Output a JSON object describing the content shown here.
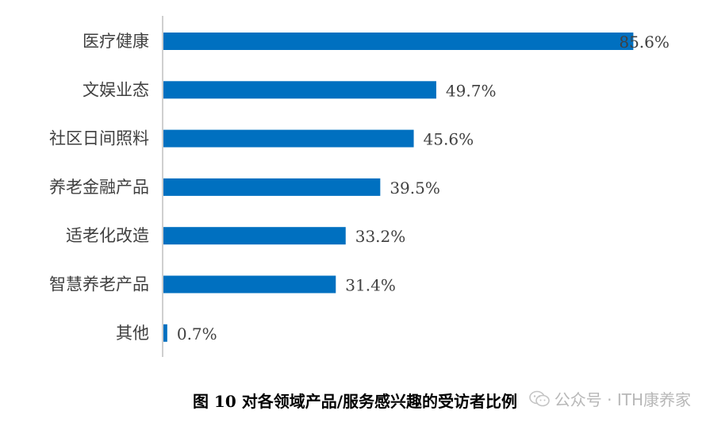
{
  "chart_data": {
    "type": "bar",
    "orientation": "horizontal",
    "categories": [
      "医疗健康",
      "文娱业态",
      "社区日间照料",
      "养老金融产品",
      "适老化改造",
      "智慧养老产品",
      "其他"
    ],
    "values": [
      85.6,
      49.7,
      45.6,
      39.5,
      33.2,
      31.4,
      0.7
    ],
    "data_labels": [
      "85.6%",
      "49.7%",
      "45.6%",
      "39.5%",
      "33.2%",
      "31.4%",
      "0.7%"
    ],
    "unit": "%",
    "xlim": [
      0,
      100
    ],
    "bar_color": "#0070C0",
    "grid": false,
    "legend": "none"
  },
  "caption": "图 10  对各领域产品/服务感兴趣的受访者比例",
  "watermark": {
    "text": "公众号 · ITH康养家",
    "icon": "wechat-icon"
  }
}
